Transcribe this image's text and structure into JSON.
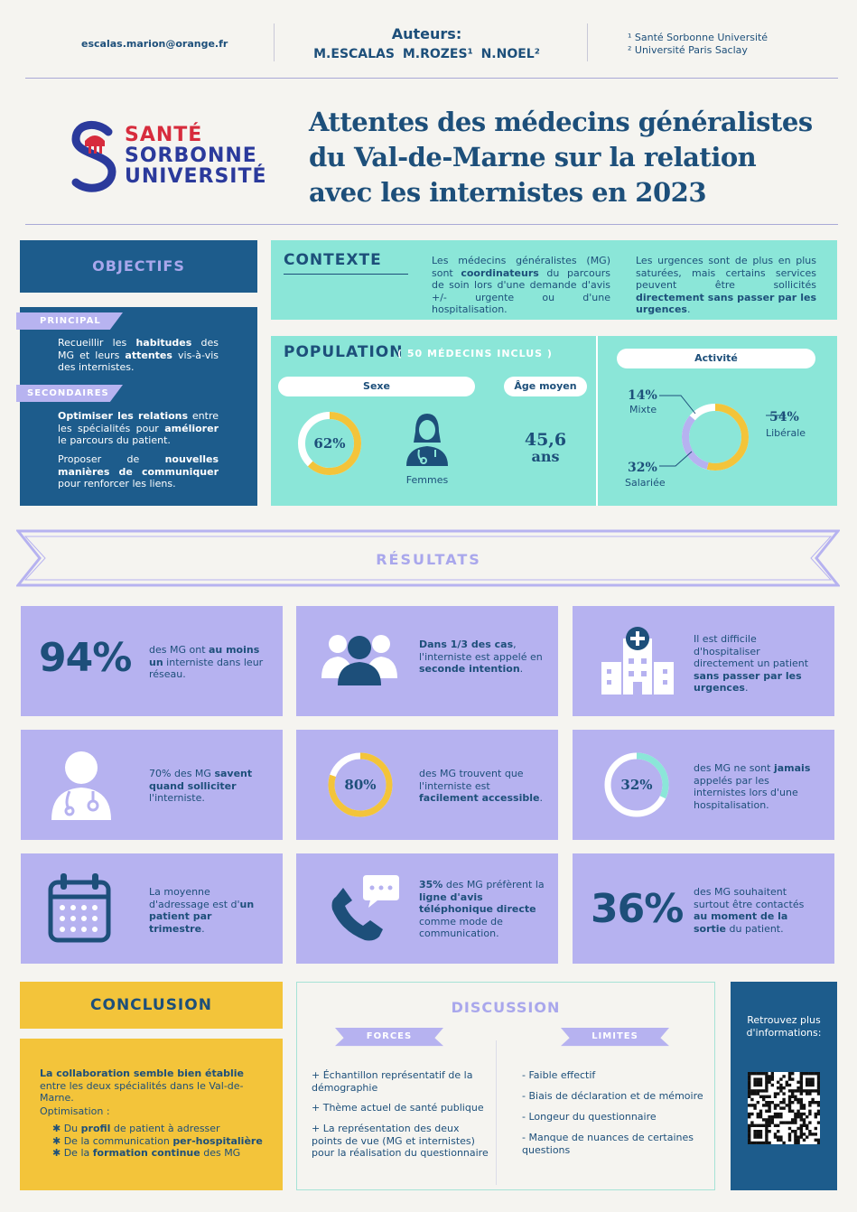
{
  "header": {
    "email": "escalas.marion@orange.fr",
    "authors_title": "Auteurs:",
    "authors": "M.ESCALAS   M.ROZES¹  N.NOEL²",
    "affiliation_1": "¹ Santé Sorbonne Université",
    "affiliation_2": "² Université Paris Saclay"
  },
  "logo": {
    "line1": "SANTÉ",
    "line2": "SORBONNE",
    "line3": "UNIVERSITÉ",
    "red": "#d72c3d",
    "blue": "#2b3a9c"
  },
  "title": {
    "line1": "Attentes des médecins généralistes",
    "line2": "du Val-de-Marne sur la relation",
    "line3": "avec les internistes en 2023"
  },
  "objectifs": {
    "heading": "OBJECTIFS",
    "principal_tag": "PRINCIPAL",
    "principal_text": "Recueillir les habitudes des MG et leurs attentes vis-à-vis des internistes.",
    "secondaires_tag": "SECONDAIRES",
    "secondaire_1": "Optimiser les relations entre les spécialités pour améliorer le parcours du patient.",
    "secondaire_2": "Proposer de nouvelles manières de communiquer pour renforcer les liens."
  },
  "contexte": {
    "heading": "CONTEXTE",
    "para_1": "Les médecins généralistes (MG) sont coordinateurs du parcours de soin lors d'une demande d'avis +/- urgente ou d'une hospitalisation.",
    "para_2": "Les urgences sont de plus en plus saturées, mais certains services peuvent être sollicités directement sans passer par les urgences."
  },
  "population": {
    "heading": "POPULATION",
    "subheading": "( 50 MÉDECINS INCLUS )",
    "sexe_label": "Sexe",
    "sexe_pct": "62%",
    "sexe_value": 62,
    "femmes_label": "Femmes",
    "age_label": "Âge moyen",
    "age_value": "45,6",
    "age_unit": "ans",
    "activite_label": "Activité",
    "mixte_pct": "14%",
    "mixte_label": "Mixte",
    "liberale_pct": "54%",
    "liberale_label": "Libérale",
    "salariee_pct": "32%",
    "salariee_label": "Salariée"
  },
  "resultats": {
    "heading": "RÉSULTATS",
    "cards": [
      {
        "big": "94%",
        "text_plain": "des MG ont ",
        "text_bold": "au moins un",
        "text_end": " interniste dans leur réseau."
      },
      {
        "text_bold": "Dans 1/3 des cas",
        "text_plain": ", l'interniste est appelé en ",
        "text_bold2": "seconde intention",
        "text_end": "."
      },
      {
        "text_plain": "Il est difficile d'hospitaliser directement un patient ",
        "text_bold": "sans passer par les urgences",
        "text_end": "."
      },
      {
        "text_plain": "70% des MG ",
        "text_bold": "savent quand solliciter",
        "text_end": " l'interniste."
      },
      {
        "ring": "80%",
        "ring_value": 80,
        "text_plain": "des MG trouvent que l'interniste est ",
        "text_bold": "facilement accessible",
        "text_end": "."
      },
      {
        "ring": "32%",
        "ring_value": 32,
        "text_plain": "des MG ne sont ",
        "text_bold": "jamais",
        "text_end": " appelés par les internistes lors d'une hospitalisation."
      },
      {
        "text_plain": "La moyenne d'adressage est d'",
        "text_bold": "un patient par trimestre",
        "text_end": "."
      },
      {
        "text_bold": "35%",
        "text_plain": " des MG préfèrent la ",
        "text_bold2": "ligne d'avis téléphonique directe",
        "text_end": " comme mode de communication."
      },
      {
        "big": "36%",
        "text_plain": "des MG souhaitent surtout être contactés ",
        "text_bold": "au moment de la sortie",
        "text_end": " du patient."
      }
    ]
  },
  "conclusion": {
    "heading": "CONCLUSION",
    "lead_bold": "La collaboration semble bien établie",
    "lead_end": " entre les deux spécialités dans le Val-de-Marne.",
    "optim_label": "Optimisation :",
    "item_1_pre": "Du ",
    "item_1_bold": "profil",
    "item_1_end": " de patient à adresser",
    "item_2_pre": "De la communication ",
    "item_2_bold": "per-hospitalière",
    "item_2_end": "",
    "item_3_pre": "De la ",
    "item_3_bold": "formation continue",
    "item_3_end": " des MG"
  },
  "discussion": {
    "heading": "DISCUSSION",
    "forces_label": "FORCES",
    "limites_label": "LIMITES",
    "forces": [
      "Échantillon représentatif de la démographie",
      "Thème actuel de santé publique",
      "La représentation des deux points de vue (MG et internistes) pour la réalisation du questionnaire"
    ],
    "limites": [
      "Faible effectif",
      "Biais de déclaration et de mémoire",
      "Longeur du questionnaire",
      "Manque de nuances de certaines questions"
    ]
  },
  "qr": {
    "text": "Retrouvez plus d'informations:"
  },
  "colors": {
    "navy": "#1d4f7a",
    "teal": "#8be6d8",
    "lavender": "#b6b2f0",
    "yellow": "#f3c43a",
    "dark_blue": "#1d5c8c"
  }
}
